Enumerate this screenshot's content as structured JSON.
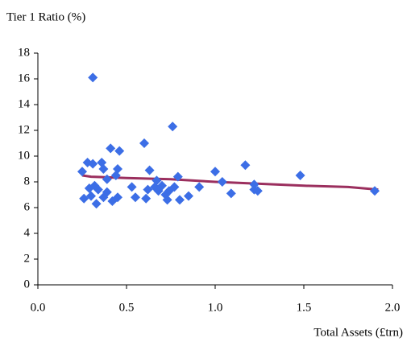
{
  "chart_data": {
    "type": "scatter",
    "y_label": "Tier 1 Ratio (%)",
    "x_label": "Total Assets (£trn)",
    "xlim": [
      0,
      2
    ],
    "ylim": [
      0,
      18
    ],
    "xticks": [
      {
        "value": 0,
        "label": "0.0"
      },
      {
        "value": 0.5,
        "label": "0.5"
      },
      {
        "value": 1,
        "label": "1.0"
      },
      {
        "value": 1.5,
        "label": "1.5"
      },
      {
        "value": 2,
        "label": "2.0"
      }
    ],
    "yticks": [
      0,
      2,
      4,
      6,
      8,
      10,
      12,
      14,
      16,
      18
    ],
    "series": [
      {
        "color": "#3c6ee6",
        "x": [
          0.25,
          0.26,
          0.28,
          0.29,
          0.3,
          0.31,
          0.31,
          0.32,
          0.33,
          0.34,
          0.36,
          0.37,
          0.37,
          0.39,
          0.39,
          0.41,
          0.42,
          0.44,
          0.45,
          0.45,
          0.46,
          0.53,
          0.55,
          0.6,
          0.61,
          0.62,
          0.63,
          0.66,
          0.67,
          0.68,
          0.7,
          0.72,
          0.73,
          0.74,
          0.76,
          0.77,
          0.79,
          0.8,
          0.85,
          0.91,
          1.0,
          1.04,
          1.09,
          1.17,
          1.22,
          1.22,
          1.24,
          1.48,
          1.9
        ],
        "values": [
          8.8,
          6.7,
          9.5,
          7.5,
          6.9,
          9.4,
          16.1,
          7.7,
          6.3,
          7.4,
          9.5,
          9.0,
          6.8,
          8.2,
          7.2,
          10.6,
          6.5,
          8.5,
          9.0,
          6.8,
          10.4,
          7.6,
          6.8,
          11.0,
          6.7,
          7.4,
          8.9,
          7.6,
          8.1,
          7.3,
          7.7,
          7.0,
          6.6,
          7.3,
          12.3,
          7.6,
          8.4,
          6.6,
          6.9,
          7.6,
          8.8,
          8.0,
          7.1,
          9.3,
          7.8,
          7.4,
          7.3,
          8.5,
          7.3
        ]
      }
    ],
    "trend": {
      "color": "#9b2f5e",
      "x": [
        0.25,
        0.3,
        0.5,
        0.75,
        1.0,
        1.25,
        1.5,
        1.75,
        1.92
      ],
      "values": [
        8.5,
        8.4,
        8.3,
        8.2,
        8.0,
        7.85,
        7.7,
        7.6,
        7.4
      ]
    }
  }
}
